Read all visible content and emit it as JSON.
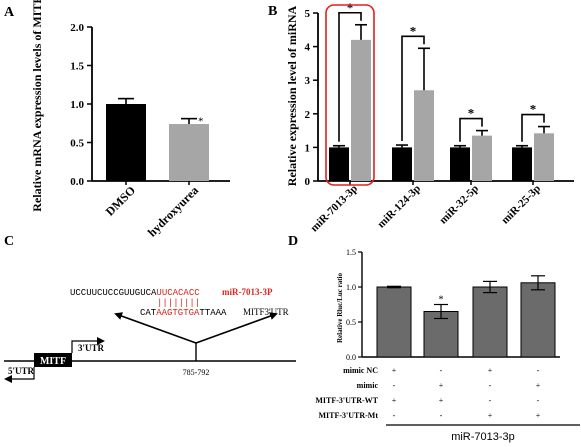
{
  "panels": {
    "A": {
      "label": "A",
      "ylabel": "Relative mRNA expression levels of MITF",
      "yticks": [
        "0.0",
        "0.5",
        "1.0",
        "1.5",
        "2.0"
      ],
      "ylim": [
        0,
        2.0
      ],
      "categories": [
        "DMSO",
        "hydroxyurea"
      ],
      "values": [
        1.0,
        0.74
      ],
      "errors": [
        0.07,
        0.07
      ],
      "colors": [
        "#000000",
        "#a6a6a6"
      ],
      "sig": [
        "",
        "*"
      ]
    },
    "B": {
      "label": "B",
      "ylabel": "Relative expression level of miRNA",
      "yticks": [
        "0",
        "1",
        "2",
        "3",
        "4",
        "5"
      ],
      "ylim": [
        0,
        5
      ],
      "groups": [
        "miR-7013-3p",
        "miR-124-3p",
        "miR-32-5p",
        "miR-25-3p"
      ],
      "series": [
        {
          "values": [
            1.0,
            1.0,
            1.0,
            1.0
          ],
          "errors": [
            0.05,
            0.07,
            0.05,
            0.05
          ],
          "color": "#000000"
        },
        {
          "values": [
            4.2,
            2.7,
            1.35,
            1.42
          ],
          "errors": [
            0.45,
            1.25,
            0.15,
            0.2
          ],
          "color": "#a6a6a6"
        }
      ],
      "sig": "*",
      "highlight_color": "#e02020"
    },
    "C": {
      "label": "C",
      "seq_black": "UCCUUCUCCGUUGUCA",
      "seq_red": "UUCACACC",
      "mirna_name": "miR-7013-3P",
      "pairing": "||||||||",
      "target_pre": "CAT",
      "target_red": "AAGTGTGA",
      "target_post": "TTAAA",
      "target_name": "MITF3'UTR",
      "gene": "MITF",
      "utr3": "3'UTR",
      "utr5": "5'UTR",
      "position": "785-792",
      "red_color": "#d9251c"
    },
    "D": {
      "label": "D",
      "ylabel": "Relative Rluc/Luc ratio",
      "yticks": [
        "0.0",
        "0.5",
        "1.0",
        "1.5"
      ],
      "ylim": [
        0,
        1.5
      ],
      "values": [
        1.0,
        0.65,
        1.0,
        1.06
      ],
      "errors": [
        0.01,
        0.1,
        0.08,
        0.1
      ],
      "sig": [
        "",
        "*",
        "",
        ""
      ],
      "bar_color": "#6b6b6b",
      "rows": [
        {
          "name": "mimic NC",
          "signs": [
            "+",
            "-",
            "+",
            "-"
          ]
        },
        {
          "name": "mimic",
          "signs": [
            "-",
            "+",
            "-",
            "+"
          ]
        },
        {
          "name": "MITF-3'UTR-WT",
          "signs": [
            "+",
            "+",
            "-",
            "-"
          ]
        },
        {
          "name": "MITF-3'UTR-Mt",
          "signs": [
            "-",
            "-",
            "+",
            "+"
          ]
        }
      ],
      "xlabel": "miR-7013-3p"
    }
  }
}
